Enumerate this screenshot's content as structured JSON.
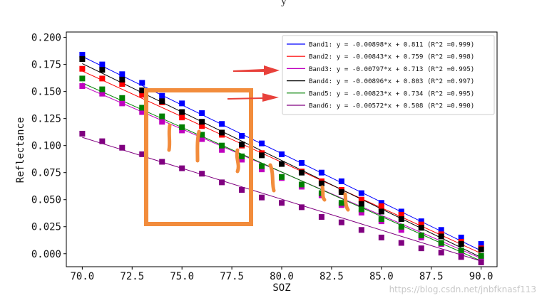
{
  "top_fragment": "y",
  "watermark": "https://blog.csdn.net/jnbfknasf113",
  "colors": {
    "axes": "#000000",
    "annotation_box": "#f28c3c",
    "arrow": "#e8413b",
    "legend_border": "#cccccc"
  },
  "chart_data": {
    "type": "scatter",
    "title": "",
    "xlabel": "SOZ",
    "ylabel": "Reflectance",
    "xlim": [
      69.2,
      90.8
    ],
    "ylim": [
      -0.012,
      0.205
    ],
    "xticks": [
      70.0,
      72.5,
      75.0,
      77.5,
      80.0,
      82.5,
      85.0,
      87.5,
      90.0
    ],
    "xtick_labels": [
      "70.0",
      "72.5",
      "75.0",
      "77.5",
      "80.0",
      "82.5",
      "85.0",
      "87.5",
      "90.0"
    ],
    "yticks": [
      0.0,
      0.025,
      0.05,
      0.075,
      0.1,
      0.125,
      0.15,
      0.175,
      0.2
    ],
    "ytick_labels": [
      "0.000",
      "0.025",
      "0.050",
      "0.075",
      "0.100",
      "0.125",
      "0.150",
      "0.175",
      "0.200"
    ],
    "grid": false,
    "legend_position": "top-right",
    "x": [
      70,
      71,
      72,
      73,
      74,
      75,
      76,
      77,
      78,
      79,
      80,
      81,
      82,
      83,
      84,
      85,
      86,
      87,
      88,
      89,
      90
    ],
    "series": [
      {
        "name": "Band1",
        "legend": "Band1: y = -0.00898*x + 0.811 (R^2 =0.999)",
        "color": "#0000ff",
        "slope": -0.00898,
        "intercept": 0.811,
        "values": [
          0.184,
          0.175,
          0.166,
          0.158,
          0.146,
          0.139,
          0.13,
          0.12,
          0.109,
          0.102,
          0.092,
          0.084,
          0.075,
          0.067,
          0.056,
          0.047,
          0.039,
          0.03,
          0.022,
          0.015,
          0.009
        ]
      },
      {
        "name": "Band2",
        "legend": "Band2: y = -0.00843*x + 0.759 (R^2 =0.998)",
        "color": "#ff0000",
        "slope": -0.00843,
        "intercept": 0.759,
        "values": [
          0.171,
          0.162,
          0.157,
          0.147,
          0.14,
          0.126,
          0.118,
          0.11,
          0.1,
          0.093,
          0.083,
          0.076,
          0.067,
          0.059,
          0.05,
          0.044,
          0.036,
          0.027,
          0.018,
          0.011,
          0.005
        ]
      },
      {
        "name": "Band3",
        "legend": "Band3: y = -0.00797*x + 0.713 (R^2 =0.995)",
        "color": "#bf00bf",
        "slope": -0.00797,
        "intercept": 0.713,
        "values": [
          0.155,
          0.148,
          0.139,
          0.131,
          0.122,
          0.114,
          0.106,
          0.096,
          0.087,
          0.078,
          0.07,
          0.062,
          0.054,
          0.045,
          0.038,
          0.03,
          0.022,
          0.015,
          0.009,
          0.002,
          -0.004
        ]
      },
      {
        "name": "Band4",
        "legend": "Band4: y = -0.00896*x + 0.803 (R^2 =0.997)",
        "color": "#000000",
        "slope": -0.00896,
        "intercept": 0.803,
        "values": [
          0.18,
          0.17,
          0.161,
          0.151,
          0.141,
          0.131,
          0.122,
          0.112,
          0.101,
          0.091,
          0.083,
          0.075,
          0.065,
          0.057,
          0.046,
          0.039,
          0.032,
          0.024,
          0.016,
          0.009,
          0.004
        ]
      },
      {
        "name": "Band5",
        "legend": "Band5: y = -0.00823*x + 0.734 (R^2 =0.995)",
        "color": "#008000",
        "slope": -0.00823,
        "intercept": 0.734,
        "values": [
          0.162,
          0.152,
          0.144,
          0.135,
          0.127,
          0.117,
          0.11,
          0.1,
          0.09,
          0.081,
          0.071,
          0.064,
          0.056,
          0.047,
          0.041,
          0.032,
          0.025,
          0.017,
          0.01,
          0.003,
          -0.002
        ]
      },
      {
        "name": "Band6",
        "legend": "Band6: y = -0.00572*x + 0.508 (R^2 =0.990)",
        "color": "#800080",
        "slope": -0.00572,
        "intercept": 0.508,
        "values": [
          0.111,
          0.104,
          0.098,
          0.092,
          0.085,
          0.079,
          0.074,
          0.066,
          0.059,
          0.052,
          0.047,
          0.043,
          0.034,
          0.029,
          0.022,
          0.015,
          0.01,
          0.005,
          0.001,
          -0.003,
          -0.008
        ]
      }
    ]
  }
}
